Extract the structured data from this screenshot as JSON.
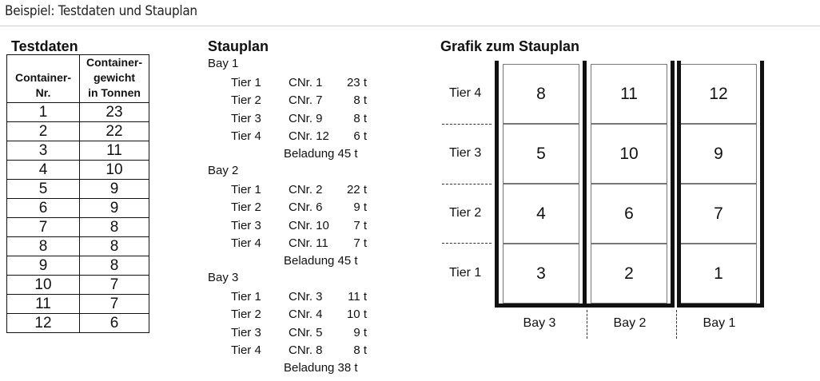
{
  "caption": "Beispiel: Testdaten und Stauplan",
  "testdaten": {
    "title": "Testdaten",
    "col1_header": [
      "Container-",
      "Nr."
    ],
    "col2_header": [
      "Container-",
      "gewicht",
      "in Tonnen"
    ],
    "rows": [
      {
        "nr": "1",
        "weight": "23"
      },
      {
        "nr": "2",
        "weight": "22"
      },
      {
        "nr": "3",
        "weight": "11"
      },
      {
        "nr": "4",
        "weight": "10"
      },
      {
        "nr": "5",
        "weight": "9"
      },
      {
        "nr": "6",
        "weight": "9"
      },
      {
        "nr": "7",
        "weight": "8"
      },
      {
        "nr": "8",
        "weight": "8"
      },
      {
        "nr": "9",
        "weight": "8"
      },
      {
        "nr": "10",
        "weight": "7"
      },
      {
        "nr": "11",
        "weight": "7"
      },
      {
        "nr": "12",
        "weight": "6"
      }
    ]
  },
  "stauplan": {
    "title": "Stauplan",
    "bays": [
      {
        "label": "Bay 1",
        "rows": [
          {
            "tier": "Tier 1",
            "cnr": "CNr. 1",
            "weight": "23 t"
          },
          {
            "tier": "Tier 2",
            "cnr": "CNr. 7",
            "weight": "8 t"
          },
          {
            "tier": "Tier 3",
            "cnr": "CNr. 9",
            "weight": "8 t"
          },
          {
            "tier": "Tier 4",
            "cnr": "CNr. 12",
            "weight": "6 t"
          }
        ],
        "load": "Beladung 45 t"
      },
      {
        "label": "Bay 2",
        "rows": [
          {
            "tier": "Tier 1",
            "cnr": "CNr. 2",
            "weight": "22 t"
          },
          {
            "tier": "Tier 2",
            "cnr": "CNr. 6",
            "weight": "9 t"
          },
          {
            "tier": "Tier 3",
            "cnr": "CNr. 10",
            "weight": "7 t"
          },
          {
            "tier": "Tier 4",
            "cnr": "CNr. 11",
            "weight": "7 t"
          }
        ],
        "load": "Beladung 45 t"
      },
      {
        "label": "Bay 3",
        "rows": [
          {
            "tier": "Tier 1",
            "cnr": "CNr. 3",
            "weight": "11 t"
          },
          {
            "tier": "Tier 2",
            "cnr": "CNr. 4",
            "weight": "10 t"
          },
          {
            "tier": "Tier 3",
            "cnr": "CNr. 5",
            "weight": "9 t"
          },
          {
            "tier": "Tier 4",
            "cnr": "CNr. 8",
            "weight": "8 t"
          }
        ],
        "load": "Beladung 38 t"
      }
    ]
  },
  "grafik": {
    "title": "Grafik zum Stauplan",
    "tier_labels": [
      "Tier 4",
      "Tier 3",
      "Tier 2",
      "Tier 1"
    ],
    "bay_labels": [
      "Bay 3",
      "Bay 2",
      "Bay 1"
    ],
    "grid": [
      [
        "8",
        "11",
        "12"
      ],
      [
        "5",
        "10",
        "9"
      ],
      [
        "4",
        "6",
        "7"
      ],
      [
        "3",
        "2",
        "1"
      ]
    ]
  }
}
